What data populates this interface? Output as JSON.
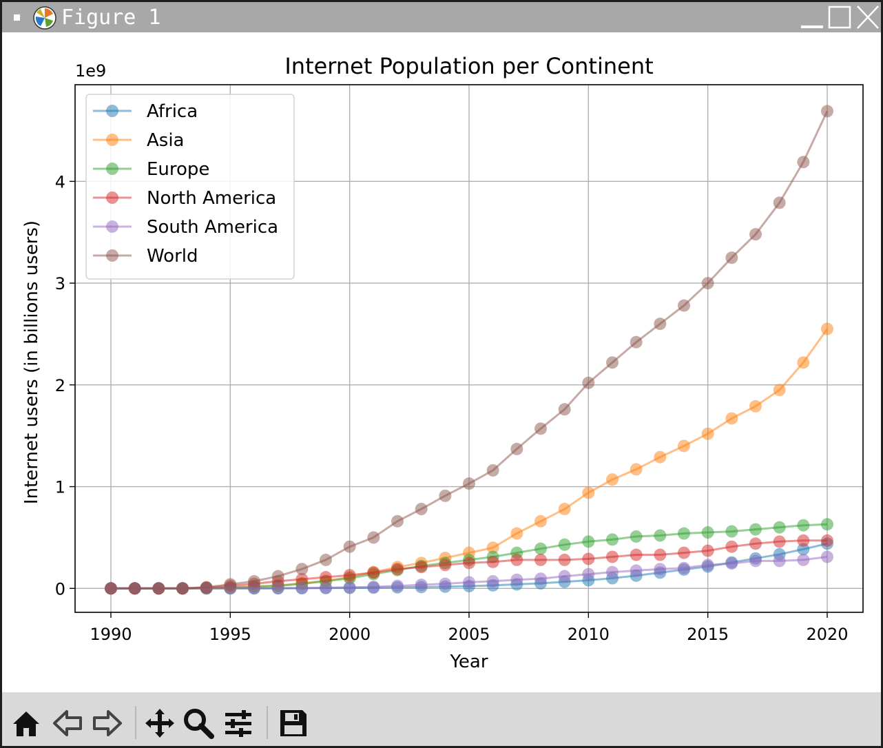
{
  "window": {
    "title": "Figure 1"
  },
  "toolbar": {
    "tools": [
      {
        "name": "home-icon"
      },
      {
        "name": "back-icon"
      },
      {
        "name": "forward-icon"
      },
      {
        "name": "pan-icon"
      },
      {
        "name": "zoom-icon"
      },
      {
        "name": "configure-subplots-icon"
      },
      {
        "name": "save-icon"
      }
    ]
  },
  "chart_data": {
    "type": "line",
    "title": "Internet Population per Continent",
    "xlabel": "Year",
    "ylabel": "Internet users (in billions users)",
    "y_offset_label": "1e9",
    "xlim": [
      1988.5,
      2021.5
    ],
    "ylim": [
      -0.235,
      4.95
    ],
    "xticks": [
      1990,
      1995,
      2000,
      2005,
      2010,
      2015,
      2020
    ],
    "yticks": [
      0,
      1,
      2,
      3,
      4
    ],
    "grid": true,
    "legend_position": "top-left",
    "x": [
      1990,
      1991,
      1992,
      1993,
      1994,
      1995,
      1996,
      1997,
      1998,
      1999,
      2000,
      2001,
      2002,
      2003,
      2004,
      2005,
      2006,
      2007,
      2008,
      2009,
      2010,
      2011,
      2012,
      2013,
      2014,
      2015,
      2016,
      2017,
      2018,
      2019,
      2020
    ],
    "series": [
      {
        "name": "Africa",
        "color": "#1f77b4",
        "values": [
          0,
          0,
          0,
          0,
          0,
          0,
          0,
          0.001,
          0.002,
          0.003,
          0.005,
          0.007,
          0.01,
          0.013,
          0.017,
          0.022,
          0.03,
          0.04,
          0.05,
          0.065,
          0.08,
          0.1,
          0.125,
          0.155,
          0.185,
          0.215,
          0.255,
          0.295,
          0.335,
          0.385,
          0.44
        ]
      },
      {
        "name": "Asia",
        "color": "#ff7f0e",
        "values": [
          0,
          0,
          0,
          0,
          0.003,
          0.01,
          0.02,
          0.03,
          0.05,
          0.075,
          0.11,
          0.16,
          0.21,
          0.25,
          0.3,
          0.35,
          0.4,
          0.54,
          0.66,
          0.78,
          0.94,
          1.07,
          1.17,
          1.29,
          1.4,
          1.52,
          1.67,
          1.79,
          1.95,
          2.22,
          2.55
        ]
      },
      {
        "name": "Europe",
        "color": "#2ca02c",
        "values": [
          0,
          0,
          0,
          0,
          0.002,
          0.007,
          0.015,
          0.025,
          0.045,
          0.07,
          0.1,
          0.14,
          0.18,
          0.22,
          0.25,
          0.28,
          0.31,
          0.35,
          0.39,
          0.43,
          0.46,
          0.48,
          0.51,
          0.52,
          0.54,
          0.55,
          0.56,
          0.58,
          0.6,
          0.62,
          0.63
        ]
      },
      {
        "name": "North America",
        "color": "#d62728",
        "values": [
          0,
          0,
          0,
          0,
          0.01,
          0.025,
          0.045,
          0.07,
          0.09,
          0.11,
          0.13,
          0.155,
          0.19,
          0.21,
          0.23,
          0.25,
          0.26,
          0.28,
          0.28,
          0.28,
          0.29,
          0.31,
          0.33,
          0.33,
          0.35,
          0.37,
          0.41,
          0.44,
          0.46,
          0.47,
          0.47
        ]
      },
      {
        "name": "South America",
        "color": "#9467bd",
        "values": [
          0,
          0,
          0,
          0,
          0,
          0,
          0.001,
          0.002,
          0.004,
          0.007,
          0.01,
          0.015,
          0.025,
          0.035,
          0.045,
          0.06,
          0.07,
          0.085,
          0.095,
          0.12,
          0.14,
          0.16,
          0.175,
          0.19,
          0.2,
          0.23,
          0.245,
          0.27,
          0.27,
          0.28,
          0.31
        ]
      },
      {
        "name": "World",
        "color": "#8c564b",
        "values": [
          0,
          0,
          0,
          0,
          0.01,
          0.04,
          0.07,
          0.12,
          0.19,
          0.28,
          0.41,
          0.5,
          0.66,
          0.78,
          0.91,
          1.03,
          1.16,
          1.37,
          1.57,
          1.76,
          2.02,
          2.22,
          2.42,
          2.6,
          2.78,
          3.0,
          3.25,
          3.48,
          3.79,
          4.19,
          4.69
        ]
      }
    ]
  }
}
